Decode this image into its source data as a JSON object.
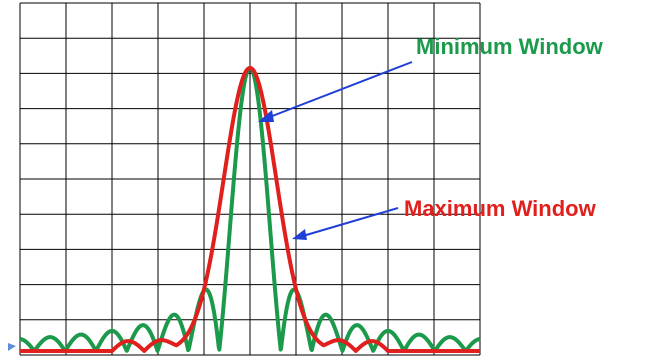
{
  "colors": {
    "background": "#ffffff",
    "grid": "#000000",
    "minimum_window": "#1a9a4a",
    "maximum_window": "#e0201c",
    "arrow": "#1f3fd6",
    "marker": "#5b8fd9"
  },
  "grid": {
    "columns": 10,
    "rows": 10
  },
  "labels": {
    "minimum_window": "Minimum Window",
    "maximum_window": "Maximum Window"
  },
  "curves": {
    "minimum_window": {
      "type": "sinc",
      "peak": 1.0,
      "center": 0.5,
      "first_null_offset": 0.067
    },
    "maximum_window": {
      "type": "gaussian",
      "peak": 1.0,
      "center": 0.5,
      "width": 0.085
    }
  }
}
